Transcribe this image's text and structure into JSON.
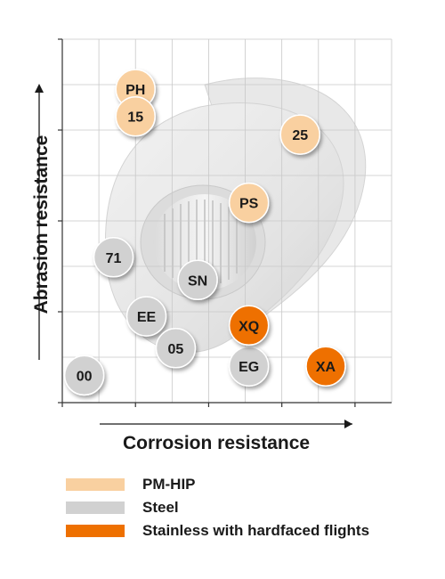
{
  "chart_data": {
    "type": "scatter",
    "xlabel": "Corrosion resistance",
    "ylabel": "Abrasion resistance",
    "xlim": [
      0,
      9
    ],
    "ylim": [
      0,
      8
    ],
    "grid": true,
    "legend_position": "bottom-left",
    "groups": [
      {
        "name": "PM-HIP",
        "color": "#f9d0a0",
        "text_color": "#1a1a1a"
      },
      {
        "name": "Steel",
        "color": "#d1d1d1",
        "text_color": "#1a1a1a"
      },
      {
        "name": "Stainless with hardfaced flights",
        "color": "#ee7000",
        "text_color": "#1a1a1a"
      }
    ],
    "points": [
      {
        "label": "PH",
        "group": "PM-HIP",
        "x": 2.0,
        "y": 6.9
      },
      {
        "label": "15",
        "group": "PM-HIP",
        "x": 2.0,
        "y": 6.3
      },
      {
        "label": "25",
        "group": "PM-HIP",
        "x": 6.5,
        "y": 5.9
      },
      {
        "label": "PS",
        "group": "PM-HIP",
        "x": 5.1,
        "y": 4.4
      },
      {
        "label": "71",
        "group": "Steel",
        "x": 1.4,
        "y": 3.2
      },
      {
        "label": "SN",
        "group": "Steel",
        "x": 3.7,
        "y": 2.7
      },
      {
        "label": "EE",
        "group": "Steel",
        "x": 2.3,
        "y": 1.9
      },
      {
        "label": "05",
        "group": "Steel",
        "x": 3.1,
        "y": 1.2
      },
      {
        "label": "00",
        "group": "Steel",
        "x": 0.6,
        "y": 0.6
      },
      {
        "label": "EG",
        "group": "Steel",
        "x": 5.1,
        "y": 0.8
      },
      {
        "label": "XQ",
        "group": "Stainless with hardfaced flights",
        "x": 5.1,
        "y": 1.7
      },
      {
        "label": "XA",
        "group": "Stainless with hardfaced flights",
        "x": 7.2,
        "y": 0.8
      }
    ]
  },
  "legend": {
    "items": [
      {
        "label": "PM-HIP",
        "color": "#f9d0a0"
      },
      {
        "label": "Steel",
        "color": "#d1d1d1"
      },
      {
        "label": "Stainless with hardfaced flights",
        "color": "#ee7000"
      }
    ]
  }
}
